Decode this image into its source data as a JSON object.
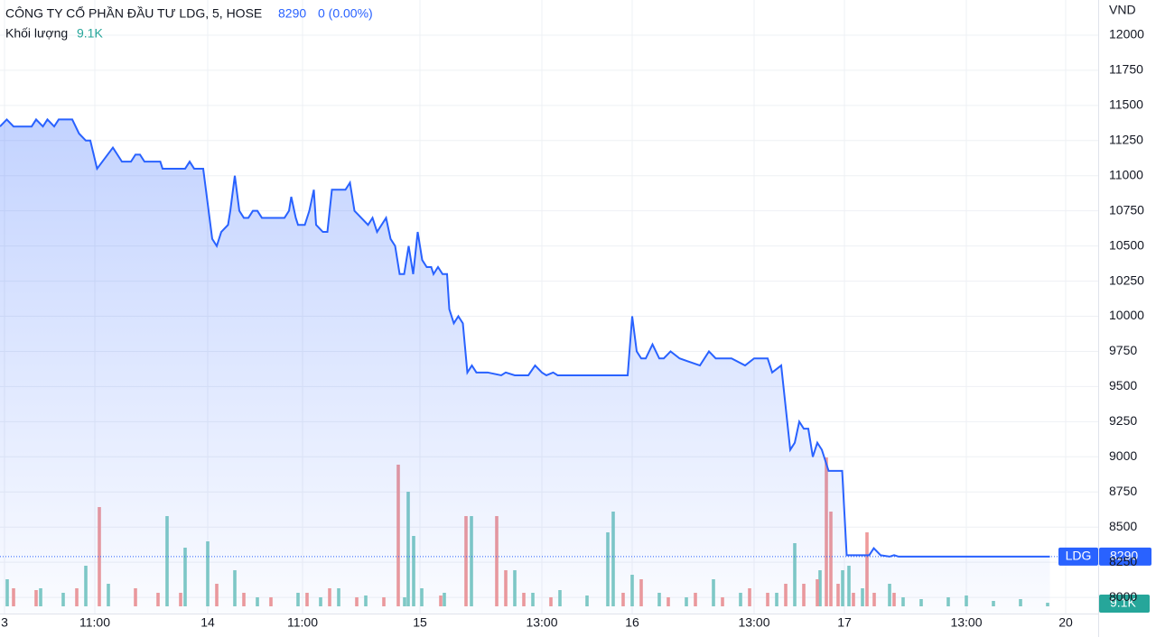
{
  "header": {
    "title": "CÔNG TY CỔ PHẦN ĐẦU TƯ LDG, 5, HOSE",
    "last_price": 8290,
    "change": "0 (0.00%)",
    "volume_caption": "Khối lượng",
    "last_volume": {
      "value": 9100,
      "label": "9.1K"
    },
    "symbol": "LDG"
  },
  "chart_data": {
    "type": "stock",
    "y_unit": "VND",
    "xlim": [
      0,
      243.2
    ],
    "ylim": [
      7885,
      12250
    ],
    "xticks": [
      {
        "value": 1,
        "label": "3"
      },
      {
        "value": 21,
        "label": "11:00"
      },
      {
        "value": 46,
        "label": "14"
      },
      {
        "value": 67,
        "label": "11:00"
      },
      {
        "value": 93,
        "label": "15"
      },
      {
        "value": 120,
        "label": "13:00"
      },
      {
        "value": 140,
        "label": "16"
      },
      {
        "value": 167,
        "label": "13:00"
      },
      {
        "value": 187,
        "label": "17"
      },
      {
        "value": 214,
        "label": "13:00"
      },
      {
        "value": 236,
        "label": "20"
      }
    ],
    "yticks": [
      8000,
      8250,
      8500,
      8750,
      9000,
      9250,
      9500,
      9750,
      10000,
      10250,
      10500,
      10750,
      11000,
      11250,
      11500,
      11750,
      12000
    ],
    "grid": true,
    "series": [
      {
        "name": "LDG",
        "color": "#2962ff",
        "x": [
          0,
          1.5,
          3,
          7,
          8,
          9.5,
          10.5,
          12,
          13,
          16,
          17.5,
          19,
          20,
          21.5,
          25,
          27,
          29,
          30,
          31,
          32,
          35.5,
          36,
          41,
          42,
          43,
          45,
          46,
          47,
          48,
          49,
          50.5,
          51,
          52,
          53,
          54,
          55,
          56,
          57,
          58,
          63,
          64,
          64.5,
          65.5,
          66,
          67.5,
          68.5,
          69.5,
          70,
          71.5,
          72.5,
          73.5,
          76.5,
          77.5,
          78.5,
          80,
          81.5,
          82.5,
          83.5,
          85.5,
          86.5,
          87.5,
          88.5,
          89.5,
          90.5,
          91.5,
          92.5,
          93.5,
          94.5,
          95.5,
          96,
          97,
          98,
          99,
          99.5,
          100.5,
          101.5,
          102.5,
          103.5,
          104.5,
          105.5,
          108,
          111,
          112,
          114,
          117,
          118.5,
          120,
          121,
          122.5,
          123.5,
          139,
          140,
          141,
          142,
          143,
          144.5,
          146,
          147,
          148.5,
          150.5,
          155,
          157,
          158.5,
          162,
          165,
          167,
          170,
          171,
          173,
          173.5,
          175,
          176,
          177,
          178,
          179,
          180,
          181,
          182,
          183.5,
          186.5,
          187,
          187.5,
          191,
          192.5,
          193.5,
          195,
          197,
          198,
          199,
          232.5
        ],
        "values": [
          11350,
          11400,
          11350,
          11350,
          11400,
          11350,
          11400,
          11350,
          11400,
          11400,
          11300,
          11250,
          11250,
          11050,
          11200,
          11100,
          11100,
          11150,
          11150,
          11100,
          11100,
          11050,
          11050,
          11100,
          11050,
          11050,
          10800,
          10550,
          10500,
          10600,
          10650,
          10750,
          11000,
          10750,
          10700,
          10700,
          10750,
          10750,
          10700,
          10700,
          10750,
          10850,
          10700,
          10650,
          10650,
          10750,
          10900,
          10650,
          10600,
          10600,
          10900,
          10900,
          10950,
          10750,
          10700,
          10650,
          10700,
          10600,
          10700,
          10550,
          10500,
          10300,
          10300,
          10500,
          10300,
          10600,
          10400,
          10350,
          10350,
          10300,
          10350,
          10300,
          10300,
          10050,
          9950,
          10000,
          9950,
          9600,
          9650,
          9600,
          9600,
          9580,
          9600,
          9580,
          9580,
          9650,
          9600,
          9580,
          9600,
          9580,
          9580,
          10000,
          9750,
          9700,
          9700,
          9800,
          9700,
          9700,
          9750,
          9700,
          9650,
          9750,
          9700,
          9700,
          9650,
          9700,
          9700,
          9600,
          9650,
          9500,
          9050,
          9100,
          9250,
          9200,
          9200,
          9000,
          9100,
          9050,
          8900,
          8900,
          8600,
          8300,
          8300,
          8300,
          8350,
          8300,
          8290,
          8300,
          8290,
          8290
        ]
      },
      {
        "name": "Khối lượng ↑",
        "color": "#80cbc4",
        "x": [
          1.6,
          9,
          14,
          19,
          24,
          37,
          41,
          46,
          52,
          57,
          66,
          71,
          75,
          81,
          89.6,
          90.4,
          91.6,
          93.4,
          98.4,
          104.4,
          114,
          118,
          124,
          130,
          134.6,
          135.8,
          140,
          146,
          152,
          158,
          164,
          172,
          176,
          181.6,
          186.6,
          188,
          191,
          197,
          200,
          204,
          210,
          214,
          220,
          226,
          232
        ],
        "values": [
          69000,
          46000,
          34500,
          103500,
          57500,
          230000,
          149500,
          165600,
          92000,
          23000,
          34500,
          23000,
          46000,
          27600,
          23000,
          292100,
          179400,
          46000,
          34500,
          230000,
          92000,
          34500,
          41400,
          27600,
          188600,
          241500,
          80500,
          34500,
          23000,
          69000,
          34500,
          34500,
          161000,
          92000,
          92000,
          103500,
          46000,
          57500,
          23000,
          18400,
          23000,
          27600,
          13800,
          18400,
          9100
        ]
      },
      {
        "name": "Khối lượng ↓",
        "color": "#ef9a9a",
        "x": [
          3,
          8,
          17,
          22,
          30,
          35,
          40,
          48,
          54,
          60,
          68,
          73,
          79,
          85,
          88.2,
          97.6,
          103.2,
          110,
          112,
          116,
          122,
          138,
          142,
          148,
          154,
          160,
          166,
          170,
          174,
          178,
          181,
          183,
          184,
          185.6,
          189,
          192,
          193.6,
          198
        ],
        "values": [
          46000,
          41400,
          46000,
          253000,
          46000,
          34500,
          34500,
          57500,
          34500,
          23000,
          34500,
          46000,
          23000,
          23000,
          361100,
          27600,
          230000,
          230000,
          92000,
          34500,
          23000,
          34500,
          69000,
          23000,
          34500,
          23000,
          46000,
          34500,
          57500,
          57500,
          69000,
          379500,
          241500,
          57500,
          34500,
          188600,
          34500,
          34500
        ]
      }
    ]
  }
}
